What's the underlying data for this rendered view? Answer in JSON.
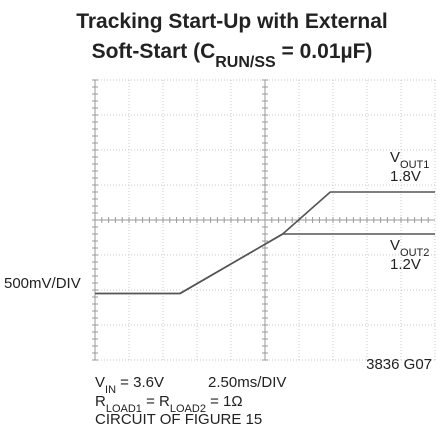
{
  "chart_data": {
    "type": "line",
    "title": [
      [
        "Tracking Start-Up with External"
      ],
      [
        "Soft-Start (C",
        "RUN/SS",
        " = 0.01µF)"
      ]
    ],
    "x": [
      0,
      6.25,
      13.8,
      17.3,
      25
    ],
    "series": [
      {
        "name": [
          [
            "V",
            "OUT1"
          ],
          [
            "1.8V"
          ]
        ],
        "color": "#555555",
        "values": [
          0.35,
          0.35,
          1.2,
          1.8,
          1.8
        ]
      },
      {
        "name": [
          [
            "V",
            "OUT2"
          ],
          [
            "1.2V"
          ]
        ],
        "color": "#555555",
        "values": [
          0.35,
          0.35,
          1.2,
          1.2,
          1.2
        ]
      }
    ],
    "xlim": [
      0,
      25
    ],
    "xticks": [
      0,
      2.5,
      5,
      7.5,
      10,
      12.5,
      15,
      17.5,
      20,
      22.5,
      25
    ],
    "ylim": [
      -0.6,
      3.4
    ],
    "yticks": [
      -0.6,
      -0.1,
      0.4,
      0.9,
      1.4,
      1.9,
      2.4,
      2.9,
      3.4
    ],
    "grid": true,
    "y_scale_label": "500mV/DIV",
    "x_scale_label": "2.50ms/DIV",
    "notes": [
      [
        "V",
        "IN",
        " = 3.6V"
      ],
      [
        "R",
        "LOAD1",
        " = R",
        "LOAD2",
        " = 1Ω"
      ],
      [
        "CIRCUIT OF FIGURE 15"
      ]
    ],
    "figure_id": "3836 G07"
  }
}
